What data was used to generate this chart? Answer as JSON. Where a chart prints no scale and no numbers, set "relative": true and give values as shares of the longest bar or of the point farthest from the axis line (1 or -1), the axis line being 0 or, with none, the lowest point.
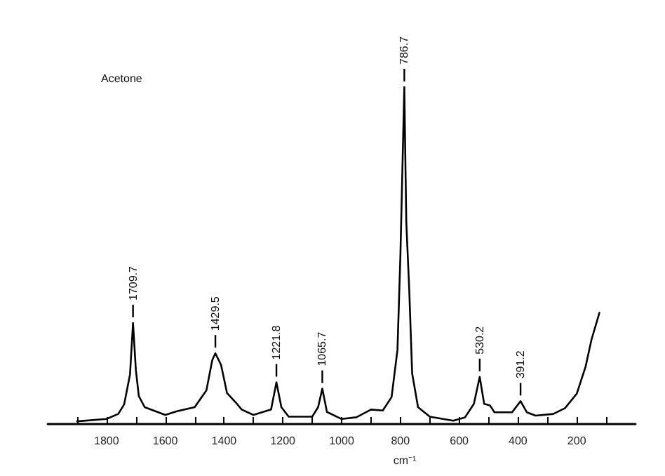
{
  "chart_data": {
    "type": "line",
    "relative": true,
    "xlabel": "cm⁻¹",
    "marker": "none",
    "line_style": "solid",
    "xlim": [
      2000,
      0
    ],
    "xticks": [
      {
        "value": 1900,
        "label": null
      },
      {
        "value": 1800,
        "label": "1800"
      },
      {
        "value": 1700,
        "label": null
      },
      {
        "value": 1600,
        "label": "1600"
      },
      {
        "value": 1500,
        "label": null
      },
      {
        "value": 1400,
        "label": "1400"
      },
      {
        "value": 1300,
        "label": null
      },
      {
        "value": 1200,
        "label": "1200"
      },
      {
        "value": 1100,
        "label": null
      },
      {
        "value": 1000,
        "label": "1000"
      },
      {
        "value": 900,
        "label": null
      },
      {
        "value": 800,
        "label": "800"
      },
      {
        "value": 700,
        "label": null
      },
      {
        "value": 600,
        "label": "600"
      },
      {
        "value": 500,
        "label": null
      },
      {
        "value": 400,
        "label": "400"
      },
      {
        "value": 300,
        "label": null
      },
      {
        "value": 200,
        "label": "200"
      },
      {
        "value": 100,
        "label": null
      }
    ],
    "series": [
      {
        "color": "#000000",
        "x": [
          1900,
          1800,
          1760,
          1740,
          1720,
          1709.7,
          1700,
          1690,
          1670,
          1600,
          1560,
          1500,
          1460,
          1440,
          1429.5,
          1410,
          1390,
          1360,
          1340,
          1300,
          1240,
          1221.8,
          1205,
          1180,
          1100,
          1080,
          1065.7,
          1050,
          1000,
          950,
          900,
          860,
          830,
          810,
          800,
          792,
          786.7,
          780,
          770,
          760,
          740,
          700,
          620,
          580,
          550,
          530.2,
          515,
          495,
          480,
          420,
          391.2,
          370,
          340,
          280,
          240,
          200,
          170,
          150,
          123
        ],
        "values": [
          0.008,
          0.015,
          0.03,
          0.058,
          0.147,
          0.3,
          0.16,
          0.083,
          0.05,
          0.027,
          0.038,
          0.05,
          0.1,
          0.19,
          0.21,
          0.175,
          0.092,
          0.064,
          0.043,
          0.027,
          0.043,
          0.124,
          0.05,
          0.022,
          0.022,
          0.05,
          0.105,
          0.036,
          0.015,
          0.02,
          0.043,
          0.04,
          0.08,
          0.22,
          0.5,
          0.8,
          1,
          0.6,
          0.4,
          0.15,
          0.05,
          0.022,
          0.01,
          0.02,
          0.06,
          0.14,
          0.06,
          0.055,
          0.035,
          0.035,
          0.068,
          0.035,
          0.025,
          0.03,
          0.047,
          0.09,
          0.17,
          0.25,
          0.33
        ]
      }
    ],
    "annotations": [
      "Acetone",
      {
        "text": "1709.7",
        "x": 1709.7,
        "y": 0.3
      },
      {
        "text": "1429.5",
        "x": 1429.5,
        "y": 0.21
      },
      {
        "text": "1221.8",
        "x": 1221.8,
        "y": 0.124
      },
      {
        "text": "1065.7",
        "x": 1065.7,
        "y": 0.105
      },
      {
        "text": "786.7",
        "x": 786.7,
        "y": 1
      },
      {
        "text": "530.2",
        "x": 530.2,
        "y": 0.14
      },
      {
        "text": "391.2",
        "x": 391.2,
        "y": 0.068
      }
    ]
  }
}
